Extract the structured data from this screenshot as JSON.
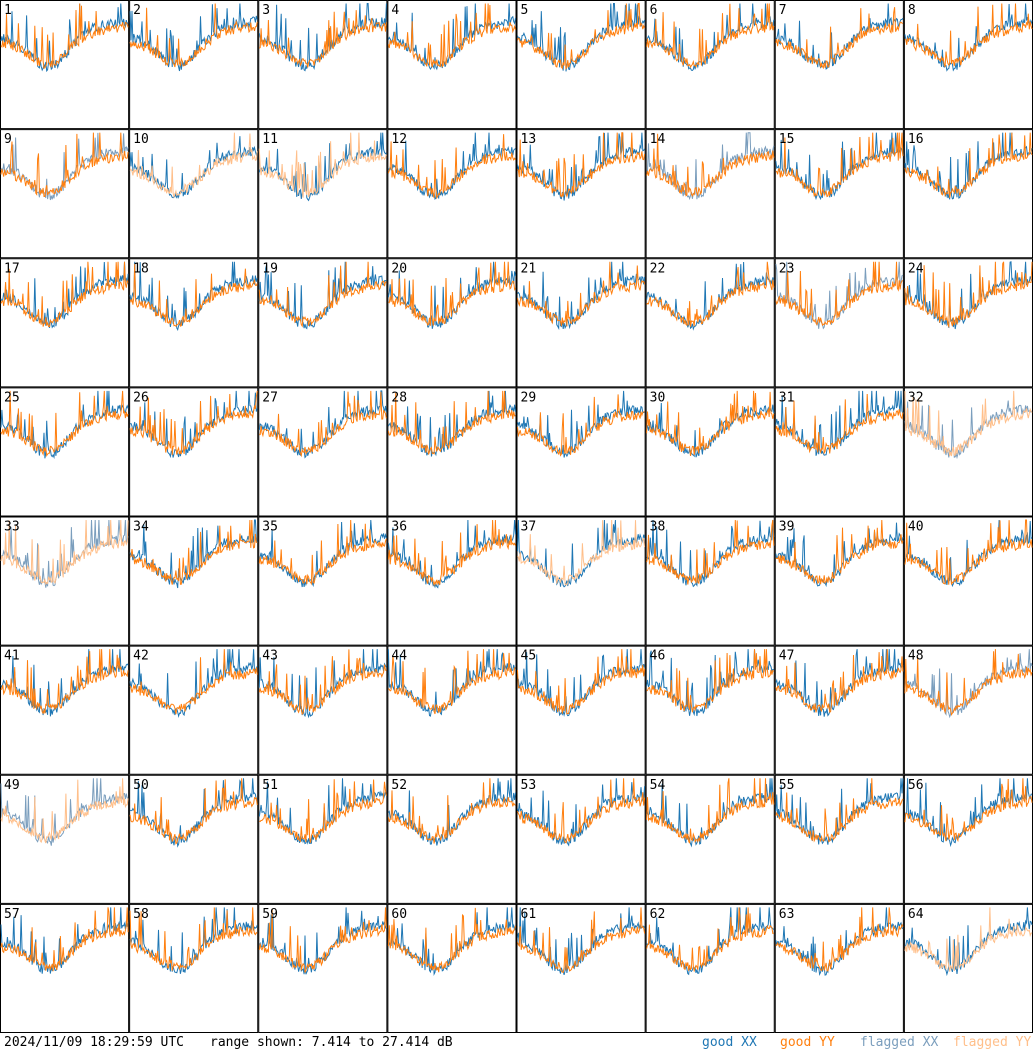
{
  "footer": {
    "timestamp": "2024/11/09 18:29:59 UTC",
    "range_text": "range shown: 7.414 to 27.414 dB",
    "legend": {
      "good_xx": "good XX",
      "good_yy": "good YY",
      "flagged_xx": "flagged XX",
      "flagged_yy": "flagged YY"
    }
  },
  "colors": {
    "good_xx": "#1f77b4",
    "good_yy": "#ff7f0e",
    "flagged_xx": "#7b9ebd",
    "flagged_yy": "#ffbf8a"
  },
  "chart_data": {
    "type": "line",
    "grid_rows": 8,
    "grid_cols": 8,
    "ylim": [
      7.414,
      27.414
    ],
    "panels": [
      {
        "id": "1",
        "xx": "good",
        "yy": "good"
      },
      {
        "id": "2",
        "xx": "good",
        "yy": "good"
      },
      {
        "id": "3",
        "xx": "good",
        "yy": "good"
      },
      {
        "id": "4",
        "xx": "good",
        "yy": "good"
      },
      {
        "id": "5",
        "xx": "good",
        "yy": "good"
      },
      {
        "id": "6",
        "xx": "good",
        "yy": "good"
      },
      {
        "id": "7",
        "xx": "good",
        "yy": "good"
      },
      {
        "id": "8",
        "xx": "good",
        "yy": "good"
      },
      {
        "id": "9",
        "xx": "flagged",
        "yy": "good"
      },
      {
        "id": "10",
        "xx": "good",
        "yy": "flagged"
      },
      {
        "id": "11",
        "xx": "good",
        "yy": "flagged"
      },
      {
        "id": "12",
        "xx": "good",
        "yy": "good"
      },
      {
        "id": "13",
        "xx": "good",
        "yy": "good"
      },
      {
        "id": "14",
        "xx": "flagged",
        "yy": "good"
      },
      {
        "id": "15",
        "xx": "good",
        "yy": "good"
      },
      {
        "id": "16",
        "xx": "good",
        "yy": "good"
      },
      {
        "id": "17",
        "xx": "good",
        "yy": "good"
      },
      {
        "id": "18",
        "xx": "good",
        "yy": "good"
      },
      {
        "id": "19",
        "xx": "good",
        "yy": "good"
      },
      {
        "id": "20",
        "xx": "good",
        "yy": "good"
      },
      {
        "id": "21",
        "xx": "good",
        "yy": "good"
      },
      {
        "id": "22",
        "xx": "good",
        "yy": "good"
      },
      {
        "id": "23",
        "xx": "flagged",
        "yy": "good"
      },
      {
        "id": "24",
        "xx": "good",
        "yy": "good"
      },
      {
        "id": "25",
        "xx": "good",
        "yy": "good"
      },
      {
        "id": "26",
        "xx": "good",
        "yy": "good"
      },
      {
        "id": "27",
        "xx": "good",
        "yy": "good"
      },
      {
        "id": "28",
        "xx": "good",
        "yy": "good"
      },
      {
        "id": "29",
        "xx": "good",
        "yy": "good"
      },
      {
        "id": "30",
        "xx": "good",
        "yy": "good"
      },
      {
        "id": "31",
        "xx": "good",
        "yy": "good"
      },
      {
        "id": "32",
        "xx": "flagged",
        "yy": "flagged"
      },
      {
        "id": "33",
        "xx": "flagged",
        "yy": "flagged"
      },
      {
        "id": "34",
        "xx": "good",
        "yy": "good"
      },
      {
        "id": "35",
        "xx": "good",
        "yy": "good"
      },
      {
        "id": "36",
        "xx": "good",
        "yy": "good"
      },
      {
        "id": "37",
        "xx": "good",
        "yy": "flagged"
      },
      {
        "id": "38",
        "xx": "good",
        "yy": "good"
      },
      {
        "id": "39",
        "xx": "good",
        "yy": "good"
      },
      {
        "id": "40",
        "xx": "good",
        "yy": "good"
      },
      {
        "id": "41",
        "xx": "good",
        "yy": "good"
      },
      {
        "id": "42",
        "xx": "good",
        "yy": "good"
      },
      {
        "id": "43",
        "xx": "good",
        "yy": "good"
      },
      {
        "id": "44",
        "xx": "good",
        "yy": "good"
      },
      {
        "id": "45",
        "xx": "good",
        "yy": "good"
      },
      {
        "id": "46",
        "xx": "good",
        "yy": "good"
      },
      {
        "id": "47",
        "xx": "good",
        "yy": "good"
      },
      {
        "id": "48",
        "xx": "flagged",
        "yy": "good"
      },
      {
        "id": "49",
        "xx": "flagged",
        "yy": "flagged"
      },
      {
        "id": "50",
        "xx": "good",
        "yy": "good"
      },
      {
        "id": "51",
        "xx": "good",
        "yy": "good"
      },
      {
        "id": "52",
        "xx": "good",
        "yy": "good"
      },
      {
        "id": "53",
        "xx": "good",
        "yy": "good"
      },
      {
        "id": "54",
        "xx": "good",
        "yy": "good"
      },
      {
        "id": "55",
        "xx": "good",
        "yy": "good"
      },
      {
        "id": "56",
        "xx": "good",
        "yy": "good"
      },
      {
        "id": "57",
        "xx": "good",
        "yy": "good"
      },
      {
        "id": "58",
        "xx": "good",
        "yy": "good"
      },
      {
        "id": "59",
        "xx": "good",
        "yy": "good"
      },
      {
        "id": "60",
        "xx": "good",
        "yy": "good"
      },
      {
        "id": "61",
        "xx": "good",
        "yy": "good"
      },
      {
        "id": "62",
        "xx": "good",
        "yy": "good"
      },
      {
        "id": "63",
        "xx": "good",
        "yy": "good"
      },
      {
        "id": "64",
        "xx": "good",
        "yy": "flagged"
      }
    ]
  }
}
